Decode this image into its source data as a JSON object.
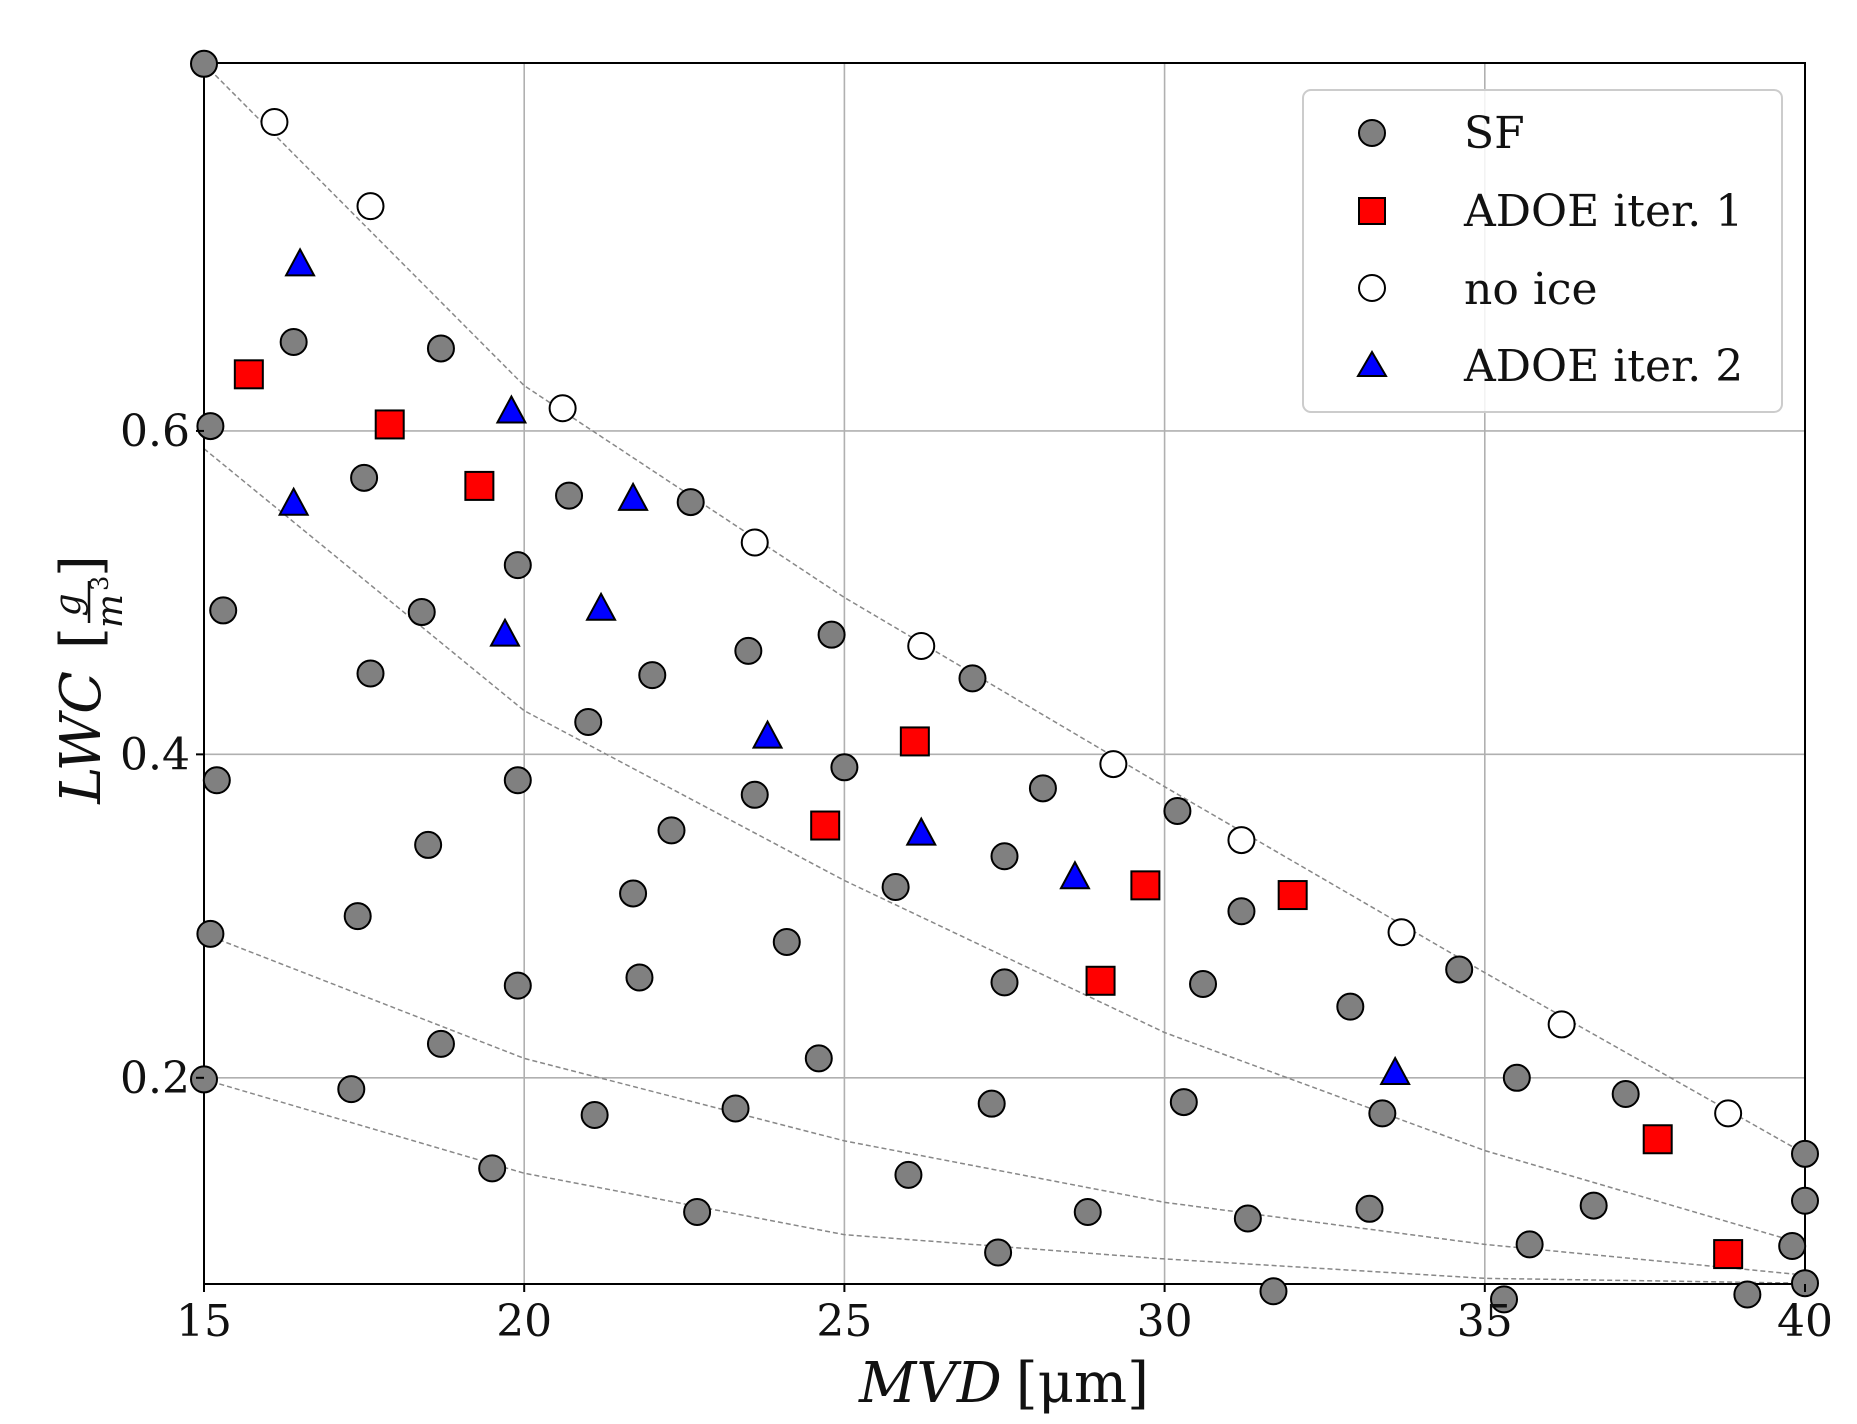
{
  "chart_data": {
    "type": "scatter",
    "xlabel": "MVD [μm]",
    "ylabel": "LWC [g/m³]",
    "xlabel_parts": {
      "var": "MVD",
      "unit": "[μm]"
    },
    "ylabel_parts": {
      "var": "LWC",
      "unit_num": "g",
      "unit_den": "m",
      "unit_exp": "3"
    },
    "xlim": [
      15,
      40
    ],
    "ylim": [
      0.0725,
      0.8275
    ],
    "xticks": [
      15,
      20,
      25,
      30,
      35,
      40
    ],
    "xtick_labels": [
      "15",
      "20",
      "25",
      "30",
      "35",
      "40"
    ],
    "yticks": [
      0.2,
      0.4,
      0.6
    ],
    "ytick_labels": [
      "0.2",
      "0.4",
      "0.6"
    ],
    "grid": true,
    "legend_position": "top-right",
    "colors": {
      "sf": "#808080",
      "adoe1": "#ff0000",
      "noice": "#ffffff",
      "adoe2": "#0000ff",
      "edge": "#000000",
      "guide": "#888888"
    },
    "series": [
      {
        "name": "SF",
        "marker": "circle",
        "color": "#808080",
        "x": [
          15.0,
          16.4,
          18.7,
          15.1,
          17.5,
          20.7,
          22.6,
          15.3,
          18.4,
          19.9,
          17.6,
          22.0,
          23.5,
          24.8,
          27.0,
          21.0,
          15.2,
          19.9,
          23.6,
          25.0,
          28.1,
          18.5,
          22.3,
          30.2,
          21.7,
          25.8,
          27.5,
          31.2,
          15.1,
          17.4,
          24.1,
          21.8,
          19.9,
          27.5,
          30.6,
          34.6,
          32.9,
          18.7,
          24.6,
          35.5,
          37.2,
          15.0,
          17.3,
          21.1,
          23.3,
          27.3,
          30.3,
          33.4,
          19.5,
          26.0,
          22.7,
          28.8,
          31.3,
          33.2,
          36.7,
          40.0,
          40.0,
          39.8,
          35.7,
          27.4,
          31.7,
          39.1,
          35.3,
          40.0
        ],
        "y": [
          0.827,
          0.655,
          0.651,
          0.603,
          0.571,
          0.56,
          0.556,
          0.489,
          0.488,
          0.517,
          0.45,
          0.449,
          0.464,
          0.474,
          0.447,
          0.42,
          0.384,
          0.384,
          0.375,
          0.392,
          0.379,
          0.344,
          0.353,
          0.365,
          0.314,
          0.318,
          0.337,
          0.303,
          0.289,
          0.3,
          0.284,
          0.262,
          0.257,
          0.259,
          0.258,
          0.267,
          0.244,
          0.221,
          0.212,
          0.2,
          0.19,
          0.199,
          0.193,
          0.177,
          0.181,
          0.184,
          0.185,
          0.178,
          0.144,
          0.14,
          0.117,
          0.117,
          0.113,
          0.119,
          0.121,
          0.153,
          0.124,
          0.096,
          0.097,
          0.092,
          0.068,
          0.066,
          0.063,
          0.073
        ]
      },
      {
        "name": "ADOE iter. 1",
        "marker": "square",
        "color": "#ff0000",
        "x": [
          15.7,
          17.9,
          19.3,
          26.1,
          24.7,
          29.7,
          32.0,
          29.0,
          37.7,
          38.8
        ],
        "y": [
          0.635,
          0.604,
          0.566,
          0.408,
          0.356,
          0.319,
          0.313,
          0.26,
          0.162,
          0.091
        ]
      },
      {
        "name": "no ice",
        "marker": "circle-open",
        "color": "#ffffff",
        "x": [
          16.1,
          17.6,
          20.6,
          23.6,
          26.2,
          29.2,
          31.2,
          33.7,
          36.2,
          38.8
        ],
        "y": [
          0.791,
          0.739,
          0.614,
          0.531,
          0.467,
          0.394,
          0.347,
          0.29,
          0.233,
          0.178
        ]
      },
      {
        "name": "ADOE iter. 2",
        "marker": "triangle",
        "color": "#0000ff",
        "x": [
          16.5,
          19.8,
          16.4,
          21.7,
          21.2,
          19.7,
          23.8,
          26.2,
          28.6,
          33.6
        ],
        "y": [
          0.703,
          0.612,
          0.555,
          0.558,
          0.49,
          0.474,
          0.411,
          0.351,
          0.324,
          0.203
        ]
      }
    ],
    "guide_curves": [
      {
        "x": [
          15,
          20,
          25,
          30,
          35,
          40
        ],
        "y": [
          0.827,
          0.628,
          0.497,
          0.38,
          0.265,
          0.153
        ]
      },
      {
        "x": [
          15,
          20,
          25,
          30,
          35,
          40
        ],
        "y": [
          0.589,
          0.427,
          0.322,
          0.228,
          0.155,
          0.097
        ]
      },
      {
        "x": [
          15,
          20,
          25,
          30,
          35,
          40
        ],
        "y": [
          0.289,
          0.212,
          0.161,
          0.123,
          0.097,
          0.078
        ]
      },
      {
        "x": [
          15,
          20,
          25,
          30,
          35,
          40
        ],
        "y": [
          0.199,
          0.141,
          0.103,
          0.088,
          0.076,
          0.073
        ]
      }
    ]
  }
}
